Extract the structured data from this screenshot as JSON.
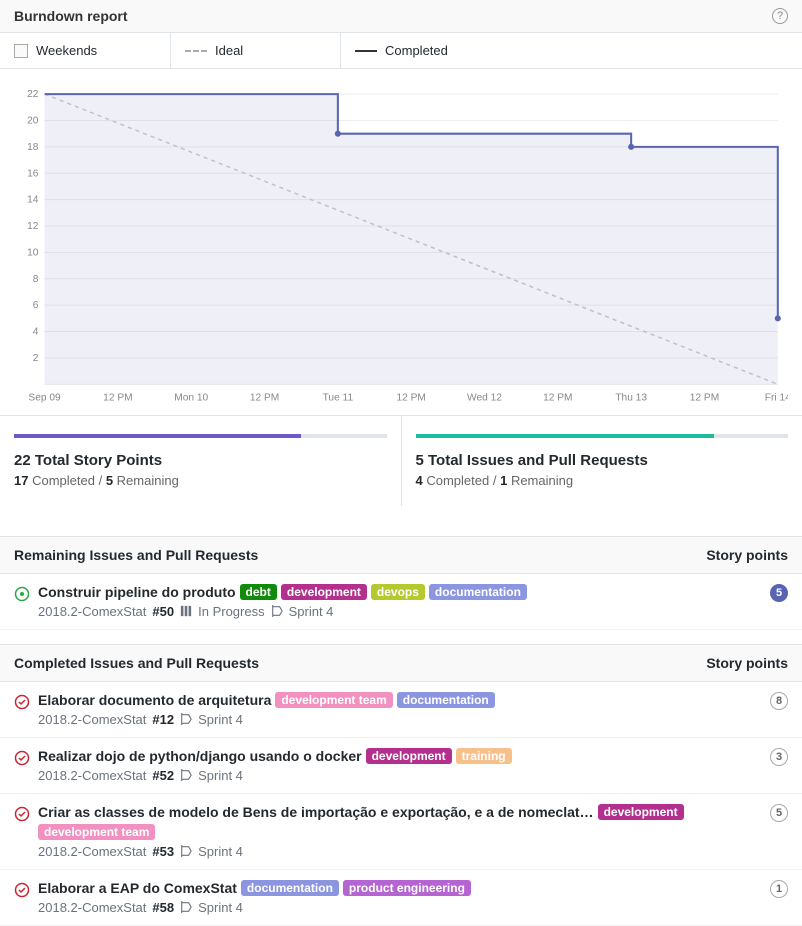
{
  "header": {
    "title": "Burndown report"
  },
  "legend": {
    "weekends": "Weekends",
    "ideal": "Ideal",
    "completed": "Completed"
  },
  "chart": {
    "type": "step-area-burndown",
    "ylim": [
      0,
      22
    ],
    "ytick_step": 2,
    "x_ticks": [
      "Sep 09",
      "12 PM",
      "Mon 10",
      "12 PM",
      "Tue 11",
      "12 PM",
      "Wed 12",
      "12 PM",
      "Thu 13",
      "12 PM",
      "Fri 14"
    ],
    "ideal": {
      "start_x": 0,
      "start_y": 22,
      "end_x": 10,
      "end_y": 0,
      "color": "#cccccc"
    },
    "completed": {
      "color": "#5965b3",
      "points": [
        {
          "x": 0,
          "y": 22
        },
        {
          "x": 4,
          "y": 22
        },
        {
          "x": 4,
          "y": 19,
          "dot": true
        },
        {
          "x": 8,
          "y": 19
        },
        {
          "x": 8,
          "y": 18,
          "dot": true
        },
        {
          "x": 10,
          "y": 18
        },
        {
          "x": 10,
          "y": 5,
          "dot": true
        }
      ]
    },
    "background_color": "#ffffff",
    "grid_color": "#ededed",
    "axis_label_fontsize": 10,
    "axis_label_color": "#888888"
  },
  "summary": {
    "left": {
      "bar_color": "#6a5acd",
      "progress_pct": 77,
      "title": "22 Total Story Points",
      "completed": "17",
      "completed_label": "Completed",
      "remaining": "5",
      "remaining_label": "Remaining"
    },
    "right": {
      "bar_color": "#1abc9c",
      "progress_pct": 80,
      "title": "5 Total Issues and Pull Requests",
      "completed": "4",
      "completed_label": "Completed",
      "remaining": "1",
      "remaining_label": "Remaining"
    }
  },
  "remaining_header": "Remaining Issues and Pull Requests",
  "completed_header": "Completed Issues and Pull Requests",
  "points_header": "Story points",
  "label_colors": {
    "debt": "#128a0c",
    "development": "#b4308e",
    "devops": "#b5c92f",
    "documentation": "#8c96e0",
    "development_team": "#f291bf",
    "training": "#f7c08a",
    "product_engineering": "#b565d1"
  },
  "remaining_issues": [
    {
      "status": "open",
      "title": "Construir pipeline do produto",
      "labels": [
        {
          "text": "debt",
          "color": "debt"
        },
        {
          "text": "development",
          "color": "development"
        },
        {
          "text": "devops",
          "color": "devops"
        },
        {
          "text": "documentation",
          "color": "documentation"
        }
      ],
      "repo": "2018.2-ComexStat",
      "number": "#50",
      "state": "In Progress",
      "milestone": "Sprint 4",
      "points": 5,
      "points_style": "solid",
      "points_color": "#5965b3"
    }
  ],
  "completed_issues": [
    {
      "status": "closed",
      "title": "Elaborar documento de arquitetura",
      "labels": [
        {
          "text": "development team",
          "color": "development_team"
        },
        {
          "text": "documentation",
          "color": "documentation"
        }
      ],
      "repo": "2018.2-ComexStat",
      "number": "#12",
      "milestone": "Sprint 4",
      "points": 8,
      "points_style": "hollow"
    },
    {
      "status": "closed",
      "title": "Realizar dojo de python/django usando o docker",
      "labels": [
        {
          "text": "development",
          "color": "development"
        },
        {
          "text": "training",
          "color": "training"
        }
      ],
      "repo": "2018.2-ComexStat",
      "number": "#52",
      "milestone": "Sprint 4",
      "points": 3,
      "points_style": "hollow"
    },
    {
      "status": "closed",
      "title": "Criar as classes de modelo de Bens de importação e exportação, e a de nomeclat…",
      "labels": [
        {
          "text": "development",
          "color": "development"
        },
        {
          "text": "development team",
          "color": "development_team"
        }
      ],
      "repo": "2018.2-ComexStat",
      "number": "#53",
      "milestone": "Sprint 4",
      "points": 5,
      "points_style": "hollow"
    },
    {
      "status": "closed",
      "title": "Elaborar a EAP do ComexStat",
      "labels": [
        {
          "text": "documentation",
          "color": "documentation"
        },
        {
          "text": "product engineering",
          "color": "product_engineering"
        }
      ],
      "repo": "2018.2-ComexStat",
      "number": "#58",
      "milestone": "Sprint 4",
      "points": 1,
      "points_style": "hollow"
    }
  ]
}
